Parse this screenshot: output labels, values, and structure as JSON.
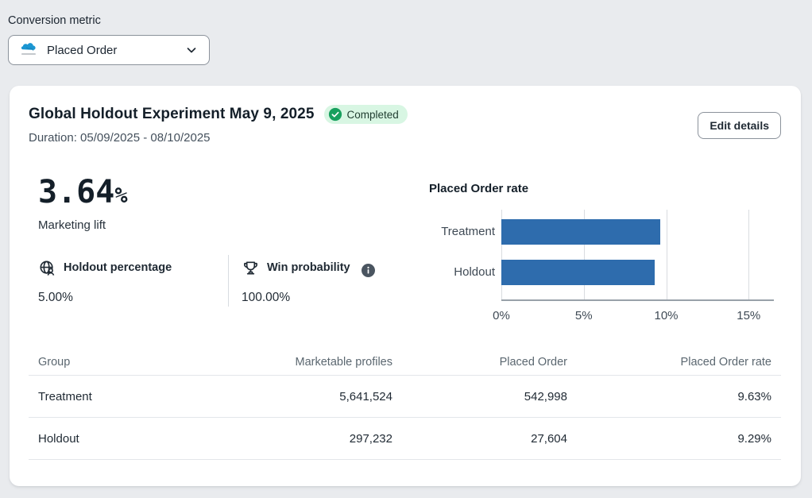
{
  "metric_selector": {
    "label": "Conversion metric",
    "selected": "Placed Order"
  },
  "card": {
    "title": "Global Holdout Experiment May 9, 2025",
    "status_badge": {
      "label": "Completed",
      "check_color": "#18a05e",
      "bg": "#d8f6e3"
    },
    "edit_button_label": "Edit details",
    "duration": "Duration: 05/09/2025 - 08/10/2025",
    "lift": {
      "value": "3.64",
      "unit": "%",
      "label": "Marketing lift"
    },
    "stats": [
      {
        "icon": "globe-person-icon",
        "label": "Holdout percentage",
        "value": "5.00%"
      },
      {
        "icon": "trophy-icon",
        "label": "Win probability",
        "value": "100.00%",
        "has_info_icon": true
      }
    ]
  },
  "chart_data": {
    "type": "bar",
    "orientation": "horizontal",
    "title": "Placed Order rate",
    "categories": [
      "Treatment",
      "Holdout"
    ],
    "values": [
      9.63,
      9.29
    ],
    "value_unit": "%",
    "xlim": [
      0,
      16
    ],
    "xticks": [
      0,
      5,
      10,
      15
    ],
    "xtick_labels": [
      "0%",
      "5%",
      "10%",
      "15%"
    ],
    "bar_color": "#2e6cad",
    "grid": true,
    "legend": false
  },
  "table": {
    "columns": [
      "Group",
      "Marketable profiles",
      "Placed Order",
      "Placed Order rate"
    ],
    "rows": [
      [
        "Treatment",
        "5,641,524",
        "542,998",
        "9.63%"
      ],
      [
        "Holdout",
        "297,232",
        "27,604",
        "9.29%"
      ]
    ]
  }
}
